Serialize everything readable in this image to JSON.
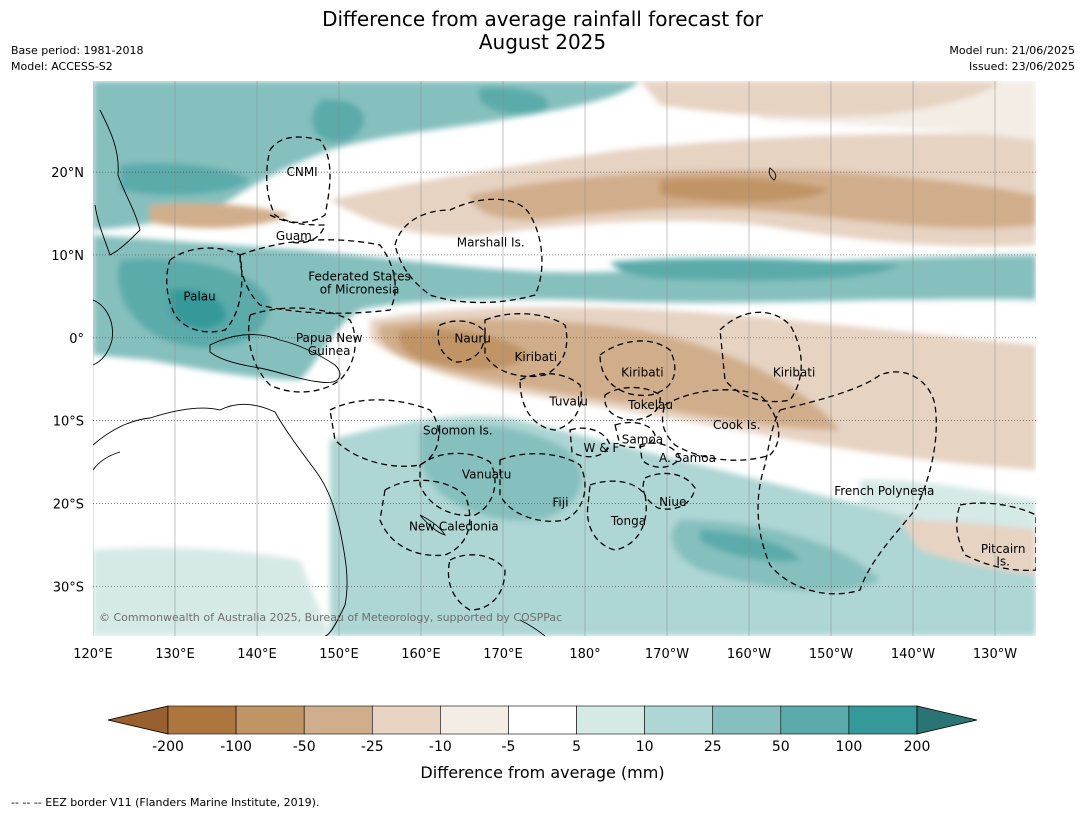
{
  "title_line1": "Difference from average rainfall forecast for",
  "title_line2": "August 2025",
  "base_period": "Base period: 1981-2018",
  "model": "Model: ACCESS-S2",
  "model_run": "Model run: 21/06/2025",
  "issued": "Issued: 23/06/2025",
  "map": {
    "lon_range": [
      120,
      235
    ],
    "lat_range": [
      -36,
      31
    ],
    "lon_labels": [
      "120°E",
      "130°E",
      "140°E",
      "150°E",
      "160°E",
      "170°E",
      "180°",
      "170°W",
      "160°W",
      "150°W",
      "140°W",
      "130°W"
    ],
    "lat_labels": [
      "20°N",
      "10°N",
      "0°",
      "10°S",
      "20°S",
      "30°S"
    ],
    "regions": [
      {
        "name": "CNMI",
        "lon": 145.5,
        "lat": 20
      },
      {
        "name": "Guam",
        "lon": 144.5,
        "lat": 12.3
      },
      {
        "name": "Marshall Is.",
        "lon": 168.5,
        "lat": 11.5
      },
      {
        "name": "Federated States",
        "lon": 152.5,
        "lat": 7.4
      },
      {
        "name": "of Micronesia",
        "lon": 152.5,
        "lat": 5.8
      },
      {
        "name": "Palau",
        "lon": 133,
        "lat": 5
      },
      {
        "name": "Papua New",
        "lon": 148.8,
        "lat": 0
      },
      {
        "name": "Guinea",
        "lon": 148.8,
        "lat": -1.6
      },
      {
        "name": "Nauru",
        "lon": 166.3,
        "lat": -0.1
      },
      {
        "name": "Kiribati",
        "lon": 174,
        "lat": -2.3
      },
      {
        "name": "Kiribati",
        "lon": 187,
        "lat": -4.2
      },
      {
        "name": "Kiribati",
        "lon": 205.5,
        "lat": -4.2
      },
      {
        "name": "Tuvalu",
        "lon": 178,
        "lat": -7.7
      },
      {
        "name": "Tokelau",
        "lon": 188,
        "lat": -8.1
      },
      {
        "name": "Cook Is.",
        "lon": 198.5,
        "lat": -10.5
      },
      {
        "name": "Solomon Is.",
        "lon": 164.5,
        "lat": -11.2
      },
      {
        "name": "Samoa",
        "lon": 187,
        "lat": -12.3
      },
      {
        "name": "W & F",
        "lon": 182,
        "lat": -13.3
      },
      {
        "name": "A. Samoa",
        "lon": 192.5,
        "lat": -14.5
      },
      {
        "name": "Vanuatu",
        "lon": 168,
        "lat": -16.5
      },
      {
        "name": "French Polynesia",
        "lon": 216.5,
        "lat": -18.5
      },
      {
        "name": "Fiji",
        "lon": 177,
        "lat": -19.9
      },
      {
        "name": "Niue",
        "lon": 190.7,
        "lat": -19.8
      },
      {
        "name": "Tonga",
        "lon": 185.3,
        "lat": -22.1
      },
      {
        "name": "New Caledonia",
        "lon": 164,
        "lat": -22.8
      },
      {
        "name": "Pitcairn",
        "lon": 231,
        "lat": -25.5
      },
      {
        "name": "Is.",
        "lon": 231,
        "lat": -27
      }
    ],
    "copyright": "© Commonwealth of Australia 2025, Bureau of Meteorology, supported by COSPPac"
  },
  "colorbar": {
    "title": "Difference from average (mm)",
    "ticks": [
      "-200",
      "-100",
      "-50",
      "-25",
      "-10",
      "-5",
      "5",
      "10",
      "25",
      "50",
      "100",
      "200"
    ],
    "colors": [
      "#98602e",
      "#ad763f",
      "#c09465",
      "#d1ae8b",
      "#e6d3c2",
      "#f3ede6",
      "#ffffff",
      "#d5e9e7",
      "#add6d4",
      "#85c0be",
      "#5aabaa",
      "#36999a",
      "#2a7474"
    ]
  },
  "footnote": "--  --  -- EEZ border V11 (Flanders Marine Institute, 2019)."
}
